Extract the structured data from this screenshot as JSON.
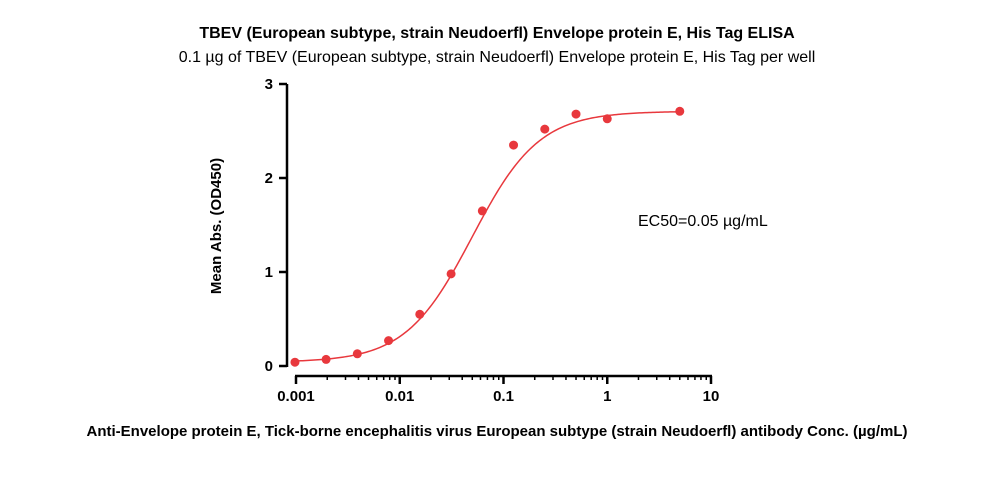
{
  "chart_data": {
    "type": "scatter",
    "title": "TBEV (European subtype, strain Neudoerfl) Envelope protein E, His Tag ELISA",
    "subtitle": "0.1 µg of TBEV (European subtype, strain Neudoerfl) Envelope protein E, His Tag per well",
    "xlabel": "Anti-Envelope protein E, Tick-borne encephalitis virus European subtype (strain Neudoerfl) antibody Conc. (µg/mL)",
    "ylabel": "Mean Abs. (OD450)",
    "x_scale": "log",
    "xlim": [
      0.001,
      10
    ],
    "ylim": [
      0,
      3
    ],
    "x_ticks": [
      {
        "value": 0.001,
        "label": "0.001"
      },
      {
        "value": 0.01,
        "label": "0.01"
      },
      {
        "value": 0.1,
        "label": "0.1"
      },
      {
        "value": 1,
        "label": "1"
      },
      {
        "value": 10,
        "label": "10"
      }
    ],
    "y_ticks": [
      {
        "value": 0,
        "label": "0"
      },
      {
        "value": 1,
        "label": "1"
      },
      {
        "value": 2,
        "label": "2"
      },
      {
        "value": 3,
        "label": "3"
      }
    ],
    "grid": false,
    "series": [
      {
        "color": "#e8383d",
        "x": [
          0.000977,
          0.00195,
          0.0039,
          0.0078,
          0.0156,
          0.03125,
          0.0625,
          0.125,
          0.25,
          0.5,
          1,
          5
        ],
        "y": [
          0.04,
          0.07,
          0.13,
          0.27,
          0.55,
          0.98,
          1.65,
          2.35,
          2.52,
          2.68,
          2.63,
          2.71
        ]
      }
    ],
    "fit_curve": {
      "type": "4PL",
      "bottom": 0.04,
      "top": 2.71,
      "ec50": 0.05,
      "hill": 1.35,
      "color": "#e8383d"
    },
    "annotation": "EC50=0.05 µg/mL"
  }
}
